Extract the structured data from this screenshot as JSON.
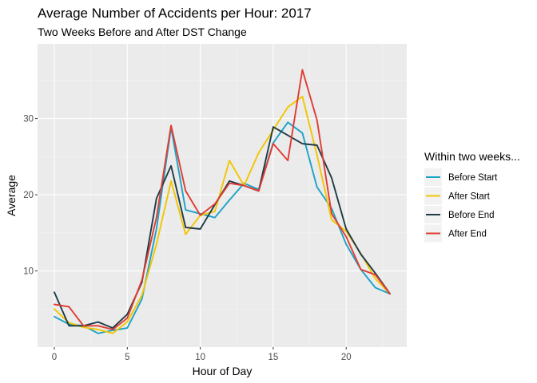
{
  "chart_data": {
    "type": "line",
    "title": "Average Number of Accidents per Hour: 2017",
    "subtitle": "Two Weeks Before and After DST Change",
    "xlabel": "Hour of Day",
    "ylabel": "Average",
    "xlim": [
      -1.15,
      24.15
    ],
    "ylim": [
      0,
      39.8
    ],
    "xticks": [
      0,
      5,
      10,
      15,
      20
    ],
    "yticks": [
      10,
      20,
      30
    ],
    "grid": true,
    "legend": {
      "title": "Within two weeks...",
      "placement": "right"
    },
    "x": [
      0,
      1,
      2,
      3,
      4,
      5,
      6,
      7,
      8,
      9,
      10,
      11,
      12,
      13,
      14,
      15,
      16,
      17,
      18,
      19,
      20,
      21,
      22,
      23
    ],
    "series": [
      {
        "name": "Before Start",
        "color": "#1ba3c6",
        "values": [
          4.0,
          3.0,
          2.8,
          1.8,
          2.2,
          2.5,
          6.3,
          15.5,
          28.8,
          18.0,
          17.5,
          17.0,
          19.3,
          21.5,
          20.7,
          26.8,
          29.5,
          28.1,
          21.0,
          18.2,
          13.5,
          10.2,
          7.8,
          7.0
        ]
      },
      {
        "name": "After Start",
        "color": "#f2c500",
        "values": [
          5.0,
          3.2,
          2.6,
          2.3,
          1.8,
          3.3,
          6.8,
          13.5,
          21.8,
          14.8,
          17.3,
          17.8,
          24.5,
          21.2,
          25.5,
          28.5,
          31.5,
          32.9,
          25.2,
          16.7,
          15.2,
          12.3,
          9.0,
          7.0
        ]
      },
      {
        "name": "Before End",
        "color": "#1f3a45",
        "values": [
          7.2,
          2.8,
          2.8,
          3.3,
          2.5,
          4.3,
          8.5,
          19.5,
          23.8,
          15.7,
          15.5,
          18.7,
          21.8,
          21.2,
          20.5,
          28.9,
          27.8,
          26.7,
          26.5,
          22.2,
          15.5,
          12.2,
          9.7,
          7.0
        ]
      },
      {
        "name": "After End",
        "color": "#e03c31",
        "values": [
          5.6,
          5.3,
          2.8,
          2.8,
          2.3,
          3.8,
          8.8,
          17.0,
          29.1,
          20.5,
          17.3,
          18.8,
          21.5,
          21.2,
          20.5,
          26.7,
          24.5,
          36.4,
          29.8,
          17.5,
          14.5,
          10.2,
          9.5,
          7.0
        ]
      }
    ]
  }
}
